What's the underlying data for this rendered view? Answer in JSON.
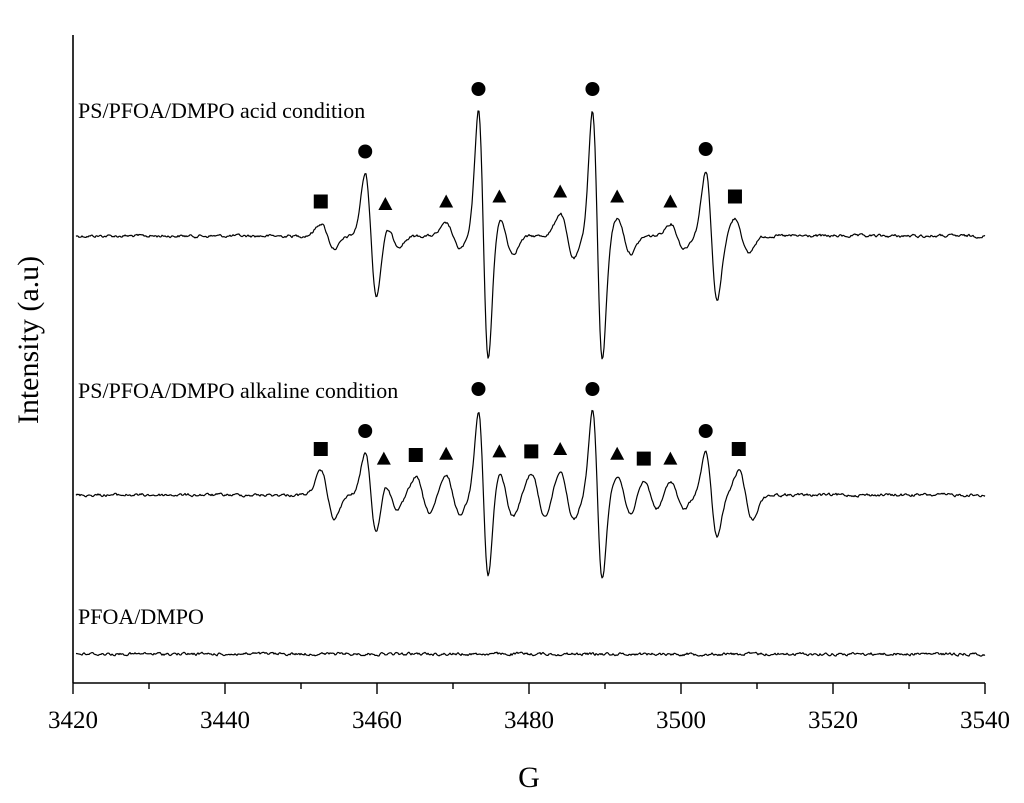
{
  "chart_data": {
    "type": "line",
    "xlabel": "G",
    "ylabel": "Intensity (a.u)",
    "xlim": [
      3420,
      3540
    ],
    "xticks": [
      3420,
      3440,
      3460,
      3480,
      3500,
      3520,
      3540
    ],
    "grid": false,
    "legend": "none",
    "series": [
      {
        "name": "PS/PFOA/DMPO acid condition",
        "baseline": 2.0,
        "signals": [
          {
            "center": 3453.5,
            "amp": 0.1,
            "width": 0.9,
            "marker": "square"
          },
          {
            "center": 3459.2,
            "amp": 0.5,
            "width": 0.75,
            "marker": "circle"
          },
          {
            "center": 3462.0,
            "amp": 0.08,
            "width": 0.9,
            "marker": "triangle"
          },
          {
            "center": 3470.0,
            "amp": 0.1,
            "width": 0.9,
            "marker": "triangle"
          },
          {
            "center": 3474.0,
            "amp": 1.0,
            "width": 0.65,
            "marker": "circle"
          },
          {
            "center": 3477.0,
            "amp": 0.14,
            "width": 0.9,
            "marker": "triangle"
          },
          {
            "center": 3485.0,
            "amp": 0.18,
            "width": 0.9,
            "marker": "triangle"
          },
          {
            "center": 3489.0,
            "amp": 1.0,
            "width": 0.65,
            "marker": "circle"
          },
          {
            "center": 3492.5,
            "amp": 0.14,
            "width": 0.9,
            "marker": "triangle"
          },
          {
            "center": 3499.5,
            "amp": 0.1,
            "width": 0.9,
            "marker": "triangle"
          },
          {
            "center": 3504.0,
            "amp": 0.52,
            "width": 0.75,
            "marker": "circle"
          },
          {
            "center": 3508.0,
            "amp": 0.14,
            "width": 0.9,
            "marker": "square"
          }
        ]
      },
      {
        "name": "PS/PFOA/DMPO alkaline condition",
        "baseline": 1.0,
        "signals": [
          {
            "center": 3453.5,
            "amp": 0.2,
            "width": 0.9,
            "marker": "square"
          },
          {
            "center": 3459.2,
            "amp": 0.35,
            "width": 0.75,
            "marker": "circle"
          },
          {
            "center": 3461.8,
            "amp": 0.12,
            "width": 0.9,
            "marker": "triangle"
          },
          {
            "center": 3466.0,
            "amp": 0.15,
            "width": 0.9,
            "marker": "square"
          },
          {
            "center": 3470.0,
            "amp": 0.16,
            "width": 0.9,
            "marker": "triangle"
          },
          {
            "center": 3474.0,
            "amp": 0.7,
            "width": 0.65,
            "marker": "circle"
          },
          {
            "center": 3477.0,
            "amp": 0.18,
            "width": 0.9,
            "marker": "triangle"
          },
          {
            "center": 3481.2,
            "amp": 0.18,
            "width": 0.9,
            "marker": "square"
          },
          {
            "center": 3485.0,
            "amp": 0.2,
            "width": 0.9,
            "marker": "triangle"
          },
          {
            "center": 3489.0,
            "amp": 0.7,
            "width": 0.65,
            "marker": "circle"
          },
          {
            "center": 3492.5,
            "amp": 0.16,
            "width": 0.9,
            "marker": "triangle"
          },
          {
            "center": 3496.0,
            "amp": 0.12,
            "width": 0.9,
            "marker": "square"
          },
          {
            "center": 3499.5,
            "amp": 0.12,
            "width": 0.9,
            "marker": "triangle"
          },
          {
            "center": 3504.0,
            "amp": 0.35,
            "width": 0.75,
            "marker": "circle"
          },
          {
            "center": 3508.5,
            "amp": 0.2,
            "width": 0.9,
            "marker": "square"
          }
        ]
      },
      {
        "name": "PFOA/DMPO",
        "baseline": 0.0,
        "signals": []
      }
    ]
  }
}
